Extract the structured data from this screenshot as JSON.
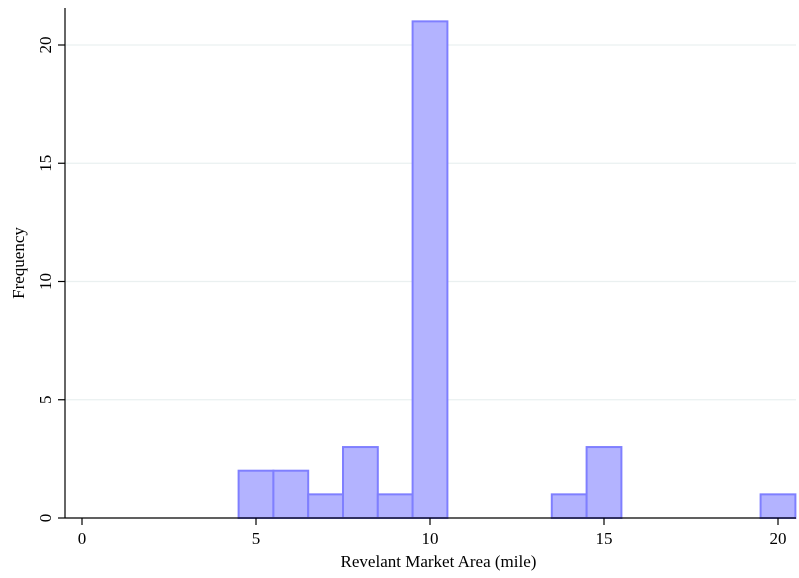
{
  "chart_data": {
    "type": "bar",
    "subtype": "histogram",
    "xlabel": "Revelant Market Area (mile)",
    "ylabel": "Frequency",
    "xlim": [
      0,
      20.4
    ],
    "ylim": [
      0,
      22.1
    ],
    "x_ticks": [
      0,
      5,
      10,
      15,
      20
    ],
    "y_ticks": [
      0,
      5,
      10,
      15,
      20
    ],
    "grid": true,
    "bin_width": 1,
    "bins": [
      {
        "x0": 4.5,
        "x1": 5.5,
        "count": 2
      },
      {
        "x0": 5.5,
        "x1": 6.5,
        "count": 2
      },
      {
        "x0": 6.5,
        "x1": 7.5,
        "count": 1
      },
      {
        "x0": 7.5,
        "x1": 8.5,
        "count": 3
      },
      {
        "x0": 8.5,
        "x1": 9.5,
        "count": 1
      },
      {
        "x0": 9.5,
        "x1": 10.5,
        "count": 21
      },
      {
        "x0": 13.5,
        "x1": 14.5,
        "count": 1
      },
      {
        "x0": 14.5,
        "x1": 15.5,
        "count": 3
      },
      {
        "x0": 19.5,
        "x1": 20.5,
        "count": 1
      }
    ],
    "colors": {
      "bar_fill": "#b3b3ff",
      "bar_stroke": "#7f7fff",
      "grid": "#eaf0f0",
      "axis": "#000000"
    }
  }
}
